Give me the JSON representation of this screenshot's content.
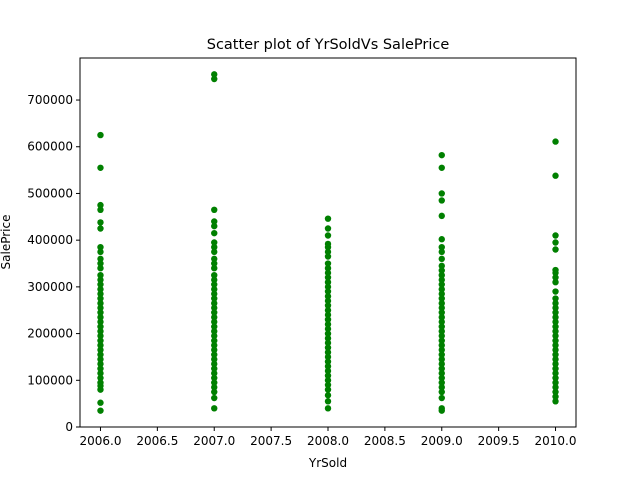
{
  "chart_data": {
    "type": "scatter",
    "title": "Scatter plot of YrSoldVs SalePrice",
    "xlabel": "YrSold",
    "ylabel": "SalePrice",
    "xlim": [
      2005.82,
      2010.18
    ],
    "ylim": [
      0,
      790000
    ],
    "xticks": [
      2006.0,
      2006.5,
      2007.0,
      2007.5,
      2008.0,
      2008.5,
      2009.0,
      2009.5,
      2010.0
    ],
    "xtick_labels": [
      "2006.0",
      "2006.5",
      "2007.0",
      "2007.5",
      "2008.0",
      "2008.5",
      "2009.0",
      "2009.5",
      "2010.0"
    ],
    "yticks": [
      0,
      100000,
      200000,
      300000,
      400000,
      500000,
      600000,
      700000
    ],
    "ytick_labels": [
      "0",
      "100000",
      "200000",
      "300000",
      "400000",
      "500000",
      "600000",
      "700000"
    ],
    "grid": false,
    "marker_color": "#008000",
    "series": [
      {
        "x": 2006,
        "y": [
          625000,
          555000,
          475000,
          465000,
          438000,
          425000,
          385000,
          375000,
          360000,
          350000,
          340000,
          325000,
          315000,
          305000,
          295000,
          285000,
          275000,
          265000,
          255000,
          245000,
          235000,
          225000,
          215000,
          205000,
          195000,
          185000,
          175000,
          165000,
          155000,
          145000,
          135000,
          125000,
          115000,
          105000,
          95000,
          88000,
          80000,
          52000,
          35000
        ]
      },
      {
        "x": 2007,
        "y": [
          755000,
          745000,
          465000,
          440000,
          430000,
          415000,
          395000,
          385000,
          375000,
          360000,
          350000,
          340000,
          325000,
          315000,
          305000,
          295000,
          285000,
          275000,
          265000,
          255000,
          245000,
          235000,
          225000,
          215000,
          205000,
          195000,
          185000,
          175000,
          165000,
          155000,
          145000,
          135000,
          125000,
          115000,
          105000,
          95000,
          85000,
          75000,
          62000,
          40000
        ]
      },
      {
        "x": 2008,
        "y": [
          446000,
          425000,
          410000,
          392000,
          385000,
          375000,
          365000,
          350000,
          340000,
          330000,
          320000,
          310000,
          300000,
          290000,
          280000,
          270000,
          260000,
          250000,
          240000,
          230000,
          220000,
          210000,
          200000,
          190000,
          180000,
          170000,
          160000,
          150000,
          140000,
          130000,
          120000,
          110000,
          100000,
          90000,
          80000,
          68000,
          55000,
          40000
        ]
      },
      {
        "x": 2009,
        "y": [
          582000,
          555000,
          500000,
          485000,
          452000,
          402000,
          385000,
          375000,
          360000,
          345000,
          335000,
          325000,
          315000,
          305000,
          295000,
          285000,
          275000,
          265000,
          255000,
          245000,
          235000,
          225000,
          215000,
          205000,
          195000,
          185000,
          175000,
          165000,
          155000,
          145000,
          135000,
          125000,
          115000,
          105000,
          95000,
          85000,
          75000,
          62000,
          40000,
          35000
        ]
      },
      {
        "x": 2010,
        "y": [
          611000,
          538000,
          410000,
          395000,
          380000,
          336000,
          330000,
          320000,
          310000,
          290000,
          275000,
          265000,
          255000,
          245000,
          235000,
          225000,
          215000,
          205000,
          195000,
          185000,
          175000,
          165000,
          155000,
          145000,
          135000,
          125000,
          115000,
          105000,
          95000,
          85000,
          75000,
          65000,
          55000
        ]
      }
    ]
  }
}
